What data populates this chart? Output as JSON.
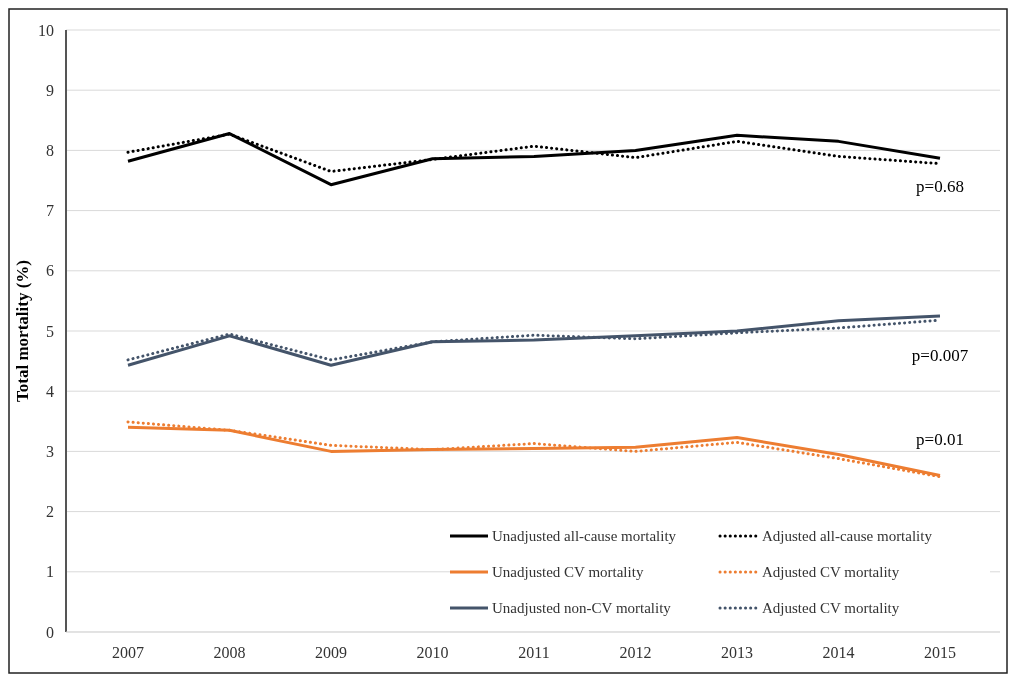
{
  "chart_data": {
    "type": "line",
    "ylabel": "Total mortality (%)",
    "categories": [
      "2007",
      "2008",
      "2009",
      "2010",
      "2011",
      "2012",
      "2013",
      "2014",
      "2015"
    ],
    "ylim": [
      0,
      10
    ],
    "yticks": [
      0,
      1,
      2,
      3,
      4,
      5,
      6,
      7,
      8,
      9,
      10
    ],
    "grid": "y",
    "legend": "bottom right",
    "marker": "none",
    "series": [
      {
        "name": "Unadjusted all-cause mortality",
        "color": "#000000",
        "line_style": "solid",
        "values": [
          7.82,
          8.28,
          7.43,
          7.86,
          7.9,
          8.0,
          8.25,
          8.15,
          7.87
        ]
      },
      {
        "name": "Adjusted all-cause mortality",
        "color": "#000000",
        "line_style": "dotted",
        "values": [
          7.97,
          8.27,
          7.65,
          7.85,
          8.07,
          7.88,
          8.15,
          7.9,
          7.78
        ]
      },
      {
        "name": "Unadjusted CV mortality",
        "color": "#ed7d31",
        "line_style": "solid",
        "values": [
          3.4,
          3.35,
          3.0,
          3.03,
          3.05,
          3.07,
          3.23,
          2.95,
          2.6
        ]
      },
      {
        "name": "Adjusted CV mortality",
        "color": "#ed7d31",
        "line_style": "dotted",
        "values": [
          3.49,
          3.35,
          3.1,
          3.03,
          3.13,
          3.0,
          3.15,
          2.88,
          2.58
        ]
      },
      {
        "name": "Unadjusted non-CV mortality",
        "color": "#44546a",
        "line_style": "solid",
        "values": [
          4.43,
          4.92,
          4.43,
          4.82,
          4.85,
          4.92,
          5.0,
          5.17,
          5.25
        ]
      },
      {
        "name": "Adjusted CV mortality",
        "color": "#44546a",
        "line_style": "dotted",
        "values": [
          4.52,
          4.95,
          4.52,
          4.82,
          4.93,
          4.87,
          4.97,
          5.05,
          5.18
        ]
      }
    ],
    "annotations": [
      "p=0.68",
      "p=0.007",
      "p=0.01"
    ]
  }
}
